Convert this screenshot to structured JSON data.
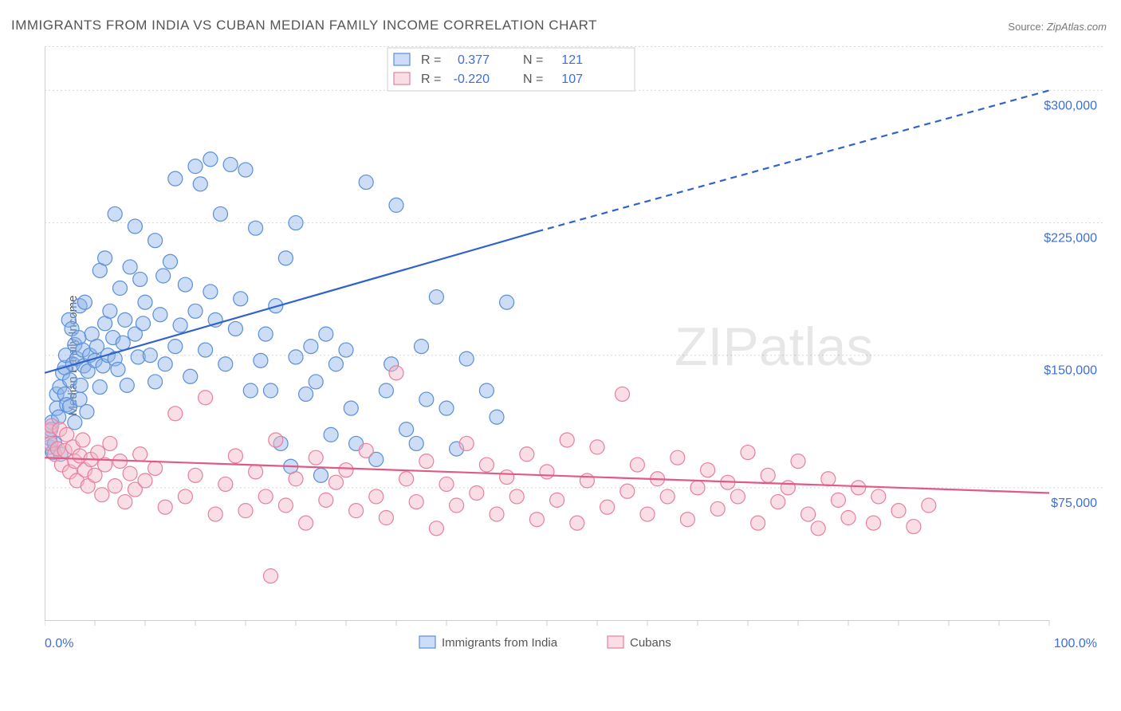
{
  "title": "IMMIGRANTS FROM INDIA VS CUBAN MEDIAN FAMILY INCOME CORRELATION CHART",
  "source_label": "Source:",
  "source_value": "ZipAtlas.com",
  "y_axis_label": "Median Family Income",
  "watermark_a": "ZIP",
  "watermark_b": "atlas",
  "chart": {
    "type": "scatter",
    "background_color": "#ffffff",
    "grid_color": "#d8d8d8",
    "axis_color": "#cfcfcf",
    "tick_color": "#cfcfcf",
    "label_color": "#3d6fd6",
    "xlim": [
      0,
      100
    ],
    "ylim": [
      0,
      325000
    ],
    "y_ticks": [
      75000,
      150000,
      225000,
      300000
    ],
    "y_tick_labels": [
      "$75,000",
      "$150,000",
      "$225,000",
      "$300,000"
    ],
    "x_end_labels": [
      "0.0%",
      "100.0%"
    ],
    "x_minor_tick_step": 5,
    "top_legend": {
      "border_color": "#cfcfcf",
      "rows": [
        {
          "swatch_fill": "#8fb4e8",
          "swatch_stroke": "#5a8fd8",
          "r_label": "R =",
          "r_value": "0.377",
          "n_label": "N =",
          "n_value": "121"
        },
        {
          "swatch_fill": "#f2b8c6",
          "swatch_stroke": "#e77fa0",
          "r_label": "R =",
          "r_value": "-0.220",
          "n_label": "N =",
          "n_value": "107"
        }
      ]
    },
    "bottom_legend": [
      {
        "swatch_fill": "#8fb4e8",
        "swatch_stroke": "#5a8fd8",
        "label": "Immigrants from India"
      },
      {
        "swatch_fill": "#f2b8c6",
        "swatch_stroke": "#e77fa0",
        "label": "Cubans"
      }
    ],
    "series": [
      {
        "name": "india",
        "marker_fill": "#8fb4e8",
        "marker_stroke": "#5a8fd8",
        "marker_fill_opacity": 0.45,
        "marker_radius": 9,
        "trend": {
          "x1": 0,
          "y1": 140000,
          "x2": 49,
          "y2": 220000,
          "dash_to_x": 100,
          "dash_to_y": 300000,
          "color": "#2f63c9",
          "width": 2.2
        },
        "points": [
          [
            0.5,
            98000
          ],
          [
            0.5,
            103000
          ],
          [
            0.6,
            108000
          ],
          [
            0.7,
            112000
          ],
          [
            0.8,
            95000
          ],
          [
            1.0,
            100000
          ],
          [
            1.2,
            128000
          ],
          [
            1.2,
            120000
          ],
          [
            1.4,
            115000
          ],
          [
            1.5,
            132000
          ],
          [
            1.6,
            94000
          ],
          [
            1.8,
            140000
          ],
          [
            2.0,
            143000
          ],
          [
            2.0,
            128000
          ],
          [
            2.1,
            150000
          ],
          [
            2.2,
            122000
          ],
          [
            2.4,
            170000
          ],
          [
            2.5,
            121000
          ],
          [
            2.5,
            136000
          ],
          [
            2.7,
            165000
          ],
          [
            2.8,
            145000
          ],
          [
            3.0,
            156000
          ],
          [
            3.0,
            112000
          ],
          [
            3.2,
            148000
          ],
          [
            3.4,
            160000
          ],
          [
            3.5,
            125000
          ],
          [
            3.5,
            178000
          ],
          [
            3.6,
            133000
          ],
          [
            3.8,
            153000
          ],
          [
            3.9,
            144000
          ],
          [
            4.0,
            180000
          ],
          [
            4.2,
            118000
          ],
          [
            4.3,
            141000
          ],
          [
            4.5,
            150000
          ],
          [
            4.7,
            162000
          ],
          [
            5.0,
            147000
          ],
          [
            5.2,
            155000
          ],
          [
            5.5,
            132000
          ],
          [
            5.5,
            198000
          ],
          [
            5.8,
            144000
          ],
          [
            6.0,
            168000
          ],
          [
            6.0,
            205000
          ],
          [
            6.3,
            150000
          ],
          [
            6.5,
            175000
          ],
          [
            6.8,
            160000
          ],
          [
            7.0,
            230000
          ],
          [
            7.0,
            148000
          ],
          [
            7.3,
            142000
          ],
          [
            7.5,
            188000
          ],
          [
            7.8,
            157000
          ],
          [
            8.0,
            170000
          ],
          [
            8.2,
            133000
          ],
          [
            8.5,
            200000
          ],
          [
            9.0,
            162000
          ],
          [
            9.0,
            223000
          ],
          [
            9.3,
            149000
          ],
          [
            9.5,
            193000
          ],
          [
            9.8,
            168000
          ],
          [
            10.0,
            180000
          ],
          [
            10.5,
            150000
          ],
          [
            11.0,
            135000
          ],
          [
            11.0,
            215000
          ],
          [
            11.5,
            173000
          ],
          [
            11.8,
            195000
          ],
          [
            12.0,
            145000
          ],
          [
            12.5,
            203000
          ],
          [
            13.0,
            155000
          ],
          [
            13.0,
            250000
          ],
          [
            13.5,
            167000
          ],
          [
            14.0,
            190000
          ],
          [
            14.5,
            138000
          ],
          [
            15.0,
            257000
          ],
          [
            15.0,
            175000
          ],
          [
            15.5,
            247000
          ],
          [
            16.0,
            153000
          ],
          [
            16.5,
            261000
          ],
          [
            16.5,
            186000
          ],
          [
            17.0,
            170000
          ],
          [
            17.5,
            230000
          ],
          [
            18.0,
            145000
          ],
          [
            18.5,
            258000
          ],
          [
            19.0,
            165000
          ],
          [
            19.5,
            182000
          ],
          [
            20.0,
            255000
          ],
          [
            20.5,
            130000
          ],
          [
            21.0,
            222000
          ],
          [
            21.5,
            147000
          ],
          [
            22.0,
            162000
          ],
          [
            22.5,
            130000
          ],
          [
            23.0,
            178000
          ],
          [
            23.5,
            100000
          ],
          [
            24.0,
            205000
          ],
          [
            24.5,
            87000
          ],
          [
            25.0,
            149000
          ],
          [
            25.0,
            225000
          ],
          [
            26.0,
            128000
          ],
          [
            26.5,
            155000
          ],
          [
            27.0,
            135000
          ],
          [
            27.5,
            82000
          ],
          [
            28.0,
            162000
          ],
          [
            28.5,
            105000
          ],
          [
            29.0,
            145000
          ],
          [
            30.0,
            153000
          ],
          [
            30.5,
            120000
          ],
          [
            31.0,
            100000
          ],
          [
            32.0,
            248000
          ],
          [
            33.0,
            91000
          ],
          [
            34.0,
            130000
          ],
          [
            34.5,
            145000
          ],
          [
            35.0,
            235000
          ],
          [
            36.0,
            108000
          ],
          [
            37.0,
            100000
          ],
          [
            37.5,
            155000
          ],
          [
            38.0,
            125000
          ],
          [
            39.0,
            183000
          ],
          [
            40.0,
            120000
          ],
          [
            41.0,
            97000
          ],
          [
            42.0,
            148000
          ],
          [
            44.0,
            130000
          ],
          [
            45.0,
            115000
          ],
          [
            46.0,
            180000
          ]
        ]
      },
      {
        "name": "cubans",
        "marker_fill": "#f2b8c6",
        "marker_stroke": "#e77fa0",
        "marker_fill_opacity": 0.45,
        "marker_radius": 9,
        "trend": {
          "x1": 0,
          "y1": 92000,
          "x2": 100,
          "y2": 72000,
          "color": "#e05a85",
          "width": 2.2
        },
        "points": [
          [
            0.5,
            107000
          ],
          [
            0.6,
            100000
          ],
          [
            0.7,
            110000
          ],
          [
            1.0,
            94000
          ],
          [
            1.3,
            97000
          ],
          [
            1.5,
            108000
          ],
          [
            1.7,
            88000
          ],
          [
            2.0,
            96000
          ],
          [
            2.2,
            105000
          ],
          [
            2.5,
            84000
          ],
          [
            2.8,
            98000
          ],
          [
            3.0,
            90000
          ],
          [
            3.2,
            79000
          ],
          [
            3.5,
            93000
          ],
          [
            3.8,
            102000
          ],
          [
            4.0,
            85000
          ],
          [
            4.3,
            76000
          ],
          [
            4.6,
            91000
          ],
          [
            5.0,
            82000
          ],
          [
            5.3,
            95000
          ],
          [
            5.7,
            71000
          ],
          [
            6.0,
            88000
          ],
          [
            6.5,
            100000
          ],
          [
            7.0,
            76000
          ],
          [
            7.5,
            90000
          ],
          [
            8.0,
            67000
          ],
          [
            8.5,
            83000
          ],
          [
            9.0,
            74000
          ],
          [
            9.5,
            94000
          ],
          [
            10.0,
            79000
          ],
          [
            11.0,
            86000
          ],
          [
            12.0,
            64000
          ],
          [
            13.0,
            117000
          ],
          [
            14.0,
            70000
          ],
          [
            15.0,
            82000
          ],
          [
            16.0,
            126000
          ],
          [
            17.0,
            60000
          ],
          [
            18.0,
            77000
          ],
          [
            19.0,
            93000
          ],
          [
            20.0,
            62000
          ],
          [
            21.0,
            84000
          ],
          [
            22.0,
            70000
          ],
          [
            22.5,
            25000
          ],
          [
            23.0,
            102000
          ],
          [
            24.0,
            65000
          ],
          [
            25.0,
            80000
          ],
          [
            26.0,
            55000
          ],
          [
            27.0,
            92000
          ],
          [
            28.0,
            68000
          ],
          [
            29.0,
            78000
          ],
          [
            30.0,
            85000
          ],
          [
            31.0,
            62000
          ],
          [
            32.0,
            96000
          ],
          [
            33.0,
            70000
          ],
          [
            34.0,
            58000
          ],
          [
            35.0,
            140000
          ],
          [
            36.0,
            80000
          ],
          [
            37.0,
            67000
          ],
          [
            38.0,
            90000
          ],
          [
            39.0,
            52000
          ],
          [
            40.0,
            77000
          ],
          [
            41.0,
            65000
          ],
          [
            42.0,
            100000
          ],
          [
            43.0,
            72000
          ],
          [
            44.0,
            88000
          ],
          [
            45.0,
            60000
          ],
          [
            46.0,
            81000
          ],
          [
            47.0,
            70000
          ],
          [
            48.0,
            94000
          ],
          [
            49.0,
            57000
          ],
          [
            50.0,
            84000
          ],
          [
            51.0,
            68000
          ],
          [
            52.0,
            102000
          ],
          [
            53.0,
            55000
          ],
          [
            54.0,
            79000
          ],
          [
            55.0,
            98000
          ],
          [
            56.0,
            64000
          ],
          [
            57.5,
            128000
          ],
          [
            58.0,
            73000
          ],
          [
            59.0,
            88000
          ],
          [
            60.0,
            60000
          ],
          [
            61.0,
            80000
          ],
          [
            62.0,
            70000
          ],
          [
            63.0,
            92000
          ],
          [
            64.0,
            57000
          ],
          [
            65.0,
            75000
          ],
          [
            66.0,
            85000
          ],
          [
            67.0,
            63000
          ],
          [
            68.0,
            78000
          ],
          [
            69.0,
            70000
          ],
          [
            70.0,
            95000
          ],
          [
            71.0,
            55000
          ],
          [
            72.0,
            82000
          ],
          [
            73.0,
            67000
          ],
          [
            74.0,
            75000
          ],
          [
            75.0,
            90000
          ],
          [
            76.0,
            60000
          ],
          [
            77.0,
            52000
          ],
          [
            78.0,
            80000
          ],
          [
            79.0,
            68000
          ],
          [
            80.0,
            58000
          ],
          [
            81.0,
            75000
          ],
          [
            82.5,
            55000
          ],
          [
            83.0,
            70000
          ],
          [
            85.0,
            62000
          ],
          [
            86.5,
            53000
          ],
          [
            88.0,
            65000
          ]
        ]
      }
    ]
  }
}
